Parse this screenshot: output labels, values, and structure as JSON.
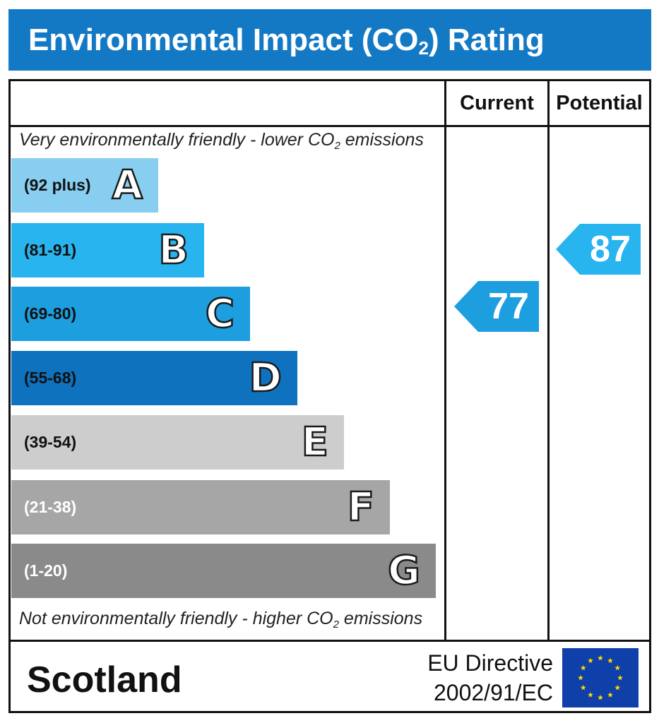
{
  "title": {
    "main": "Environmental Impact (CO",
    "sub": "2",
    "end": ") Rating"
  },
  "columns": {
    "current": "Current",
    "potential": "Potential"
  },
  "top_note": {
    "pre": "Very environmentally friendly - lower CO",
    "sub": "2",
    "post": " emissions"
  },
  "bottom_note": {
    "pre": "Not environmentally friendly - higher CO",
    "sub": "2",
    "post": " emissions"
  },
  "bands": [
    {
      "range": "(92 plus)",
      "letter": "A",
      "color": "#87cef0",
      "text_color": "#111111"
    },
    {
      "range": "(81-91)",
      "letter": "B",
      "color": "#28b4ee",
      "text_color": "#111111"
    },
    {
      "range": "(69-80)",
      "letter": "C",
      "color": "#1d9ede",
      "text_color": "#111111"
    },
    {
      "range": "(55-68)",
      "letter": "D",
      "color": "#0f72bf",
      "text_color": "#111111"
    },
    {
      "range": "(39-54)",
      "letter": "E",
      "color": "#cdcdcd",
      "text_color": "#111111"
    },
    {
      "range": "(21-38)",
      "letter": "F",
      "color": "#a6a6a6",
      "text_color": "#ffffff"
    },
    {
      "range": "(1-20)",
      "letter": "G",
      "color": "#8a8a8a",
      "text_color": "#ffffff"
    }
  ],
  "ratings": {
    "current": {
      "value": "77",
      "color": "#1d9ede"
    },
    "potential": {
      "value": "87",
      "color": "#28b4ee"
    }
  },
  "footer": {
    "country": "Scotland",
    "directive_line1": "EU Directive",
    "directive_line2": "2002/91/EC"
  },
  "colors": {
    "title_bar": "#1479c5",
    "eu_flag": "#0f3fa8",
    "eu_star": "#ffd800"
  }
}
